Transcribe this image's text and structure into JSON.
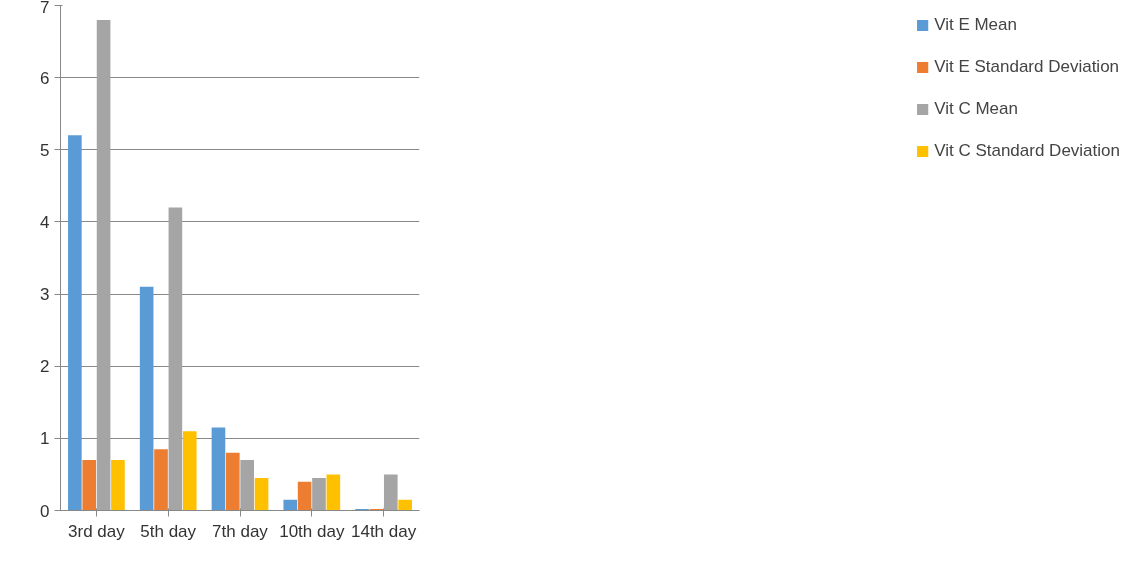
{
  "chart_data": {
    "type": "bar",
    "categories": [
      "3rd day",
      "5th day",
      "7th day",
      "10th day",
      "14th day"
    ],
    "series": [
      {
        "name": "Vit E Mean",
        "color": "#5b9bd5",
        "values": [
          5.2,
          3.1,
          1.15,
          0.15,
          0.02
        ]
      },
      {
        "name": "Vit E Standard Deviation",
        "color": "#ed7d31",
        "values": [
          0.7,
          0.85,
          0.8,
          0.4,
          0.02
        ]
      },
      {
        "name": "Vit C Mean",
        "color": "#a5a5a5",
        "values": [
          6.8,
          4.2,
          0.7,
          0.45,
          0.5
        ]
      },
      {
        "name": "Vit C Standard Deviation",
        "color": "#ffc000",
        "values": [
          0.7,
          1.1,
          0.45,
          0.5,
          0.15
        ]
      }
    ],
    "ylim": [
      0,
      7
    ],
    "yticks": [
      0,
      1,
      2,
      3,
      4,
      5,
      6,
      7
    ],
    "grid": "y",
    "legend": "right"
  }
}
